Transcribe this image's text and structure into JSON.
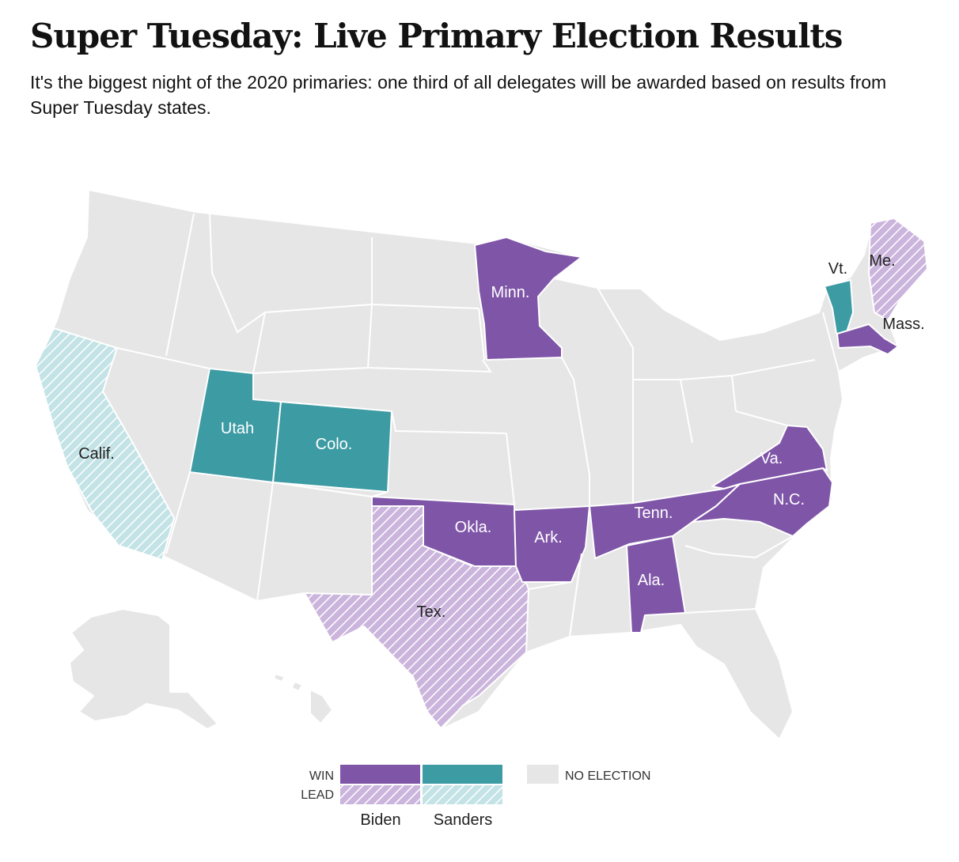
{
  "headline": "Super Tuesday: Live Primary Election Results",
  "dek": "It's the biggest night of the 2020 primaries: one third of all delegates will be awarded based on results from Super Tuesday states.",
  "colors": {
    "biden_win": "#7f55a8",
    "sanders_win": "#3d9ba4",
    "biden_lead": "#cbb5dd",
    "sanders_lead": "#c3e3e6",
    "no_election": "#e6e6e6",
    "border": "#ffffff"
  },
  "states": {
    "minn": {
      "label": "Minn.",
      "status": "biden_win"
    },
    "mass": {
      "label": "Mass.",
      "status": "biden_win"
    },
    "va": {
      "label": "Va.",
      "status": "biden_win"
    },
    "nc": {
      "label": "N.C.",
      "status": "biden_win"
    },
    "tenn": {
      "label": "Tenn.",
      "status": "biden_win"
    },
    "okla": {
      "label": "Okla.",
      "status": "biden_win"
    },
    "ark": {
      "label": "Ark.",
      "status": "biden_win"
    },
    "ala": {
      "label": "Ala.",
      "status": "biden_win"
    },
    "tex": {
      "label": "Tex.",
      "status": "biden_lead"
    },
    "me": {
      "label": "Me.",
      "status": "biden_lead"
    },
    "vt": {
      "label": "Vt.",
      "status": "sanders_win"
    },
    "utah": {
      "label": "Utah",
      "status": "sanders_win"
    },
    "colo": {
      "label": "Colo.",
      "status": "sanders_win"
    },
    "calif": {
      "label": "Calif.",
      "status": "sanders_lead"
    }
  },
  "legend": {
    "win_label": "WIN",
    "lead_label": "LEAD",
    "no_election_label": "NO ELECTION",
    "candidates": [
      "Biden",
      "Sanders"
    ]
  }
}
